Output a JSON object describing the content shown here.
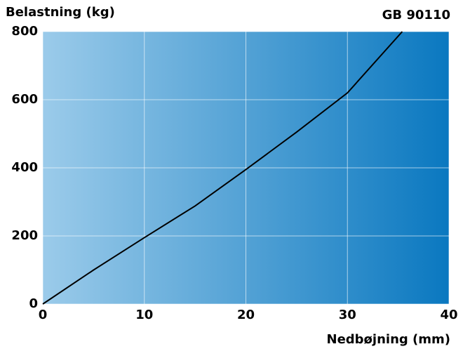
{
  "chart_data": {
    "type": "line",
    "title": "GB 90110",
    "y_label": "Belastning (kg)",
    "x_label": "Nedbøjning (mm)",
    "x": [
      0,
      5,
      10,
      15,
      20,
      25,
      30,
      35.4
    ],
    "series": [
      {
        "name": "GB 90110",
        "color": "#000000",
        "values": [
          0,
          100,
          195,
          288,
          395,
          505,
          620,
          800
        ]
      }
    ],
    "xlim": [
      0,
      40
    ],
    "xticks": [
      0,
      10,
      20,
      30,
      40
    ],
    "ylim": [
      0,
      800
    ],
    "yticks": [
      0,
      200,
      400,
      600,
      800
    ],
    "grid": true
  }
}
